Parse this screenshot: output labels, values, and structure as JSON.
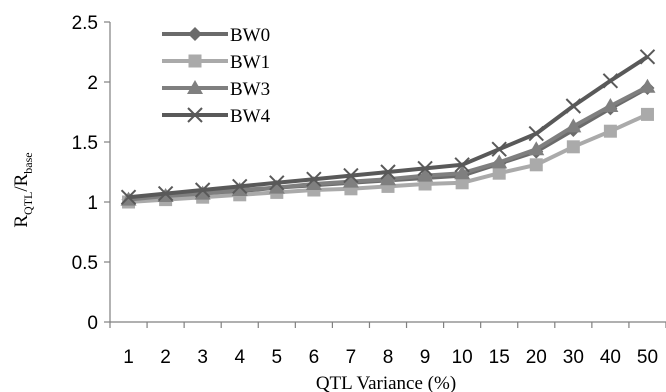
{
  "chart_data": {
    "type": "line",
    "categories": [
      "1",
      "2",
      "3",
      "4",
      "5",
      "6",
      "7",
      "8",
      "9",
      "10",
      "15",
      "20",
      "30",
      "40",
      "50"
    ],
    "xlabel": "QTL Variance (%)",
    "ylabel": {
      "main": "R",
      "sub1": "QTL",
      "mid": "/R",
      "sub2": "base"
    },
    "ylim": [
      0,
      2.5
    ],
    "yticks": [
      "0",
      "0.5",
      "1",
      "1.5",
      "2",
      "2.5"
    ],
    "grid": false,
    "legend": "top-left",
    "series": [
      {
        "name": "BW0",
        "marker": "diamond",
        "color": "#6b6b6b",
        "values": [
          1.02,
          1.05,
          1.07,
          1.09,
          1.12,
          1.14,
          1.16,
          1.18,
          1.2,
          1.22,
          1.32,
          1.42,
          1.6,
          1.78,
          1.95
        ]
      },
      {
        "name": "BW1",
        "marker": "square",
        "color": "#aaaaaa",
        "values": [
          1.0,
          1.02,
          1.04,
          1.06,
          1.08,
          1.1,
          1.11,
          1.13,
          1.15,
          1.16,
          1.24,
          1.31,
          1.46,
          1.59,
          1.73
        ]
      },
      {
        "name": "BW3",
        "marker": "triangle",
        "color": "#7f7f7f",
        "values": [
          1.02,
          1.05,
          1.07,
          1.1,
          1.12,
          1.15,
          1.17,
          1.19,
          1.22,
          1.24,
          1.33,
          1.44,
          1.63,
          1.8,
          1.96
        ]
      },
      {
        "name": "BW4",
        "marker": "x",
        "color": "#595959",
        "values": [
          1.04,
          1.07,
          1.1,
          1.13,
          1.16,
          1.19,
          1.22,
          1.25,
          1.28,
          1.31,
          1.44,
          1.57,
          1.8,
          2.01,
          2.21
        ]
      }
    ]
  }
}
